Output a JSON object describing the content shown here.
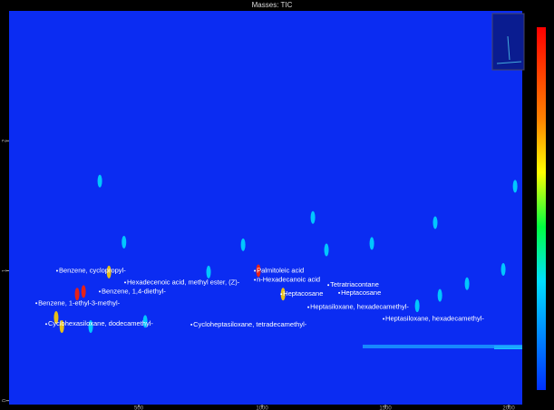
{
  "chart_data": {
    "type": "scatter",
    "title": "Masses: TIC",
    "xlim": [
      -26,
      2055
    ],
    "ylim": [
      -0.03,
      3.0
    ],
    "xticks": [
      500,
      1000,
      1500,
      2000
    ],
    "yticks": [
      0,
      1,
      2
    ],
    "background": "#0b2cf2",
    "peaks": [
      {
        "color": "#00d8ff",
        "x": [
          342,
          440,
          1206,
          1445,
          1702,
          2026,
          923,
          1978,
          1831,
          1721,
          1629,
          526,
          305,
          783,
          1261
        ],
        "y": [
          1.69,
          1.22,
          1.41,
          1.21,
          1.37,
          1.65,
          1.2,
          1.01,
          0.9,
          0.81,
          0.73,
          0.61,
          0.57,
          0.99,
          1.16
        ]
      },
      {
        "color": "#ffd000",
        "x": [
          379,
          188,
          165,
          1085
        ],
        "y": [
          0.99,
          0.57,
          0.64,
          0.82
        ]
      },
      {
        "color": "#ff2000",
        "x": [
          276,
          250,
          985
        ],
        "y": [
          0.84,
          0.82,
          1.0
        ]
      }
    ],
    "annotations": [
      {
        "text": "Benzene, cyclopropyl-",
        "x": 176,
        "y": 1.0
      },
      {
        "text": "Palmitoleic acid",
        "x": 978,
        "y": 1.0
      },
      {
        "text": "Hexadecenoic acid, methyl ester, (Z)-",
        "x": 452,
        "y": 0.91
      },
      {
        "text": "n-Hexadecanoic acid",
        "x": 978,
        "y": 0.93
      },
      {
        "text": "Tetratriacontane",
        "x": 1276,
        "y": 0.89
      },
      {
        "text": "Heptacosane",
        "x": 1320,
        "y": 0.83
      },
      {
        "text": "Heptacosane",
        "x": 1085,
        "y": 0.82
      },
      {
        "text": "Benzene, 1,4-diethyl-",
        "x": 349,
        "y": 0.84
      },
      {
        "text": "Benzene, 1-ethyl-3-methyl-",
        "x": 92,
        "y": 0.75
      },
      {
        "text": "Heptasiloxane, hexadecamethyl-",
        "x": 1195,
        "y": 0.72
      },
      {
        "text": "Heptasiloxane, hexadecamethyl-",
        "x": 1500,
        "y": 0.63
      },
      {
        "text": "Cyclohexasiloxane, dodecamethyl-",
        "x": 132,
        "y": 0.59
      },
      {
        "text": "Cycloheptasiloxane, tetradecamethyl-",
        "x": 721,
        "y": 0.585
      }
    ]
  }
}
